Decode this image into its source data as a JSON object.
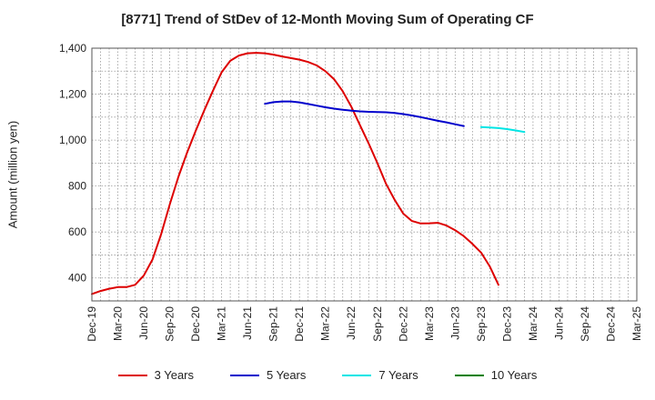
{
  "chart_data": {
    "type": "line",
    "title": "[8771]  Trend of StDev of 12-Month Moving Sum of Operating CF",
    "ylabel": "Amount (million yen)",
    "xlabel": "",
    "ylim": [
      300,
      1400
    ],
    "yticks": [
      400,
      600,
      800,
      1000,
      1200,
      1400
    ],
    "ytick_labels": [
      "400",
      "600",
      "800",
      "1,000",
      "1,200",
      "1,400"
    ],
    "x_start": "Dec-19",
    "x_end": "Mar-25",
    "xtick_labels": [
      "Dec-19",
      "Mar-20",
      "Jun-20",
      "Sep-20",
      "Dec-20",
      "Mar-21",
      "Jun-21",
      "Sep-21",
      "Dec-21",
      "Mar-22",
      "Jun-22",
      "Sep-22",
      "Dec-22",
      "Mar-23",
      "Jun-23",
      "Sep-23",
      "Dec-23",
      "Mar-24",
      "Jun-24",
      "Sep-24",
      "Dec-24",
      "Mar-25"
    ],
    "grid": true,
    "legend_position": "bottom",
    "series": [
      {
        "name": "3 Years",
        "color": "#dd0000",
        "points": [
          [
            "Dec-19",
            330
          ],
          [
            "Jan-20",
            343
          ],
          [
            "Feb-20",
            353
          ],
          [
            "Mar-20",
            360
          ],
          [
            "Apr-20",
            360
          ],
          [
            "May-20",
            370
          ],
          [
            "Jun-20",
            410
          ],
          [
            "Jul-20",
            480
          ],
          [
            "Aug-20",
            590
          ],
          [
            "Sep-20",
            720
          ],
          [
            "Oct-20",
            840
          ],
          [
            "Nov-20",
            945
          ],
          [
            "Dec-20",
            1040
          ],
          [
            "Jan-21",
            1130
          ],
          [
            "Feb-21",
            1215
          ],
          [
            "Mar-21",
            1295
          ],
          [
            "Apr-21",
            1345
          ],
          [
            "May-21",
            1368
          ],
          [
            "Jun-21",
            1378
          ],
          [
            "Jul-21",
            1380
          ],
          [
            "Aug-21",
            1378
          ],
          [
            "Sep-21",
            1372
          ],
          [
            "Oct-21",
            1364
          ],
          [
            "Nov-21",
            1357
          ],
          [
            "Dec-21",
            1350
          ],
          [
            "Jan-22",
            1340
          ],
          [
            "Feb-22",
            1325
          ],
          [
            "Mar-22",
            1300
          ],
          [
            "Apr-22",
            1265
          ],
          [
            "May-22",
            1213
          ],
          [
            "Jun-22",
            1145
          ],
          [
            "Jul-22",
            1065
          ],
          [
            "Aug-22",
            985
          ],
          [
            "Sep-22",
            900
          ],
          [
            "Oct-22",
            810
          ],
          [
            "Nov-22",
            740
          ],
          [
            "Dec-22",
            680
          ],
          [
            "Jan-23",
            648
          ],
          [
            "Feb-23",
            637
          ],
          [
            "Mar-23",
            638
          ],
          [
            "Apr-23",
            640
          ],
          [
            "May-23",
            628
          ],
          [
            "Jun-23",
            608
          ],
          [
            "Jul-23",
            582
          ],
          [
            "Aug-23",
            548
          ],
          [
            "Sep-23",
            510
          ],
          [
            "Oct-23",
            450
          ],
          [
            "Nov-23",
            370
          ]
        ]
      },
      {
        "name": "5 Years",
        "color": "#0000cc",
        "points": [
          [
            "Aug-21",
            1158
          ],
          [
            "Sep-21",
            1165
          ],
          [
            "Oct-21",
            1168
          ],
          [
            "Nov-21",
            1168
          ],
          [
            "Dec-21",
            1164
          ],
          [
            "Jan-22",
            1157
          ],
          [
            "Feb-22",
            1150
          ],
          [
            "Mar-22",
            1143
          ],
          [
            "Apr-22",
            1137
          ],
          [
            "May-22",
            1132
          ],
          [
            "Jun-22",
            1128
          ],
          [
            "Jul-22",
            1125
          ],
          [
            "Aug-22",
            1123
          ],
          [
            "Sep-22",
            1122
          ],
          [
            "Oct-22",
            1121
          ],
          [
            "Nov-22",
            1118
          ],
          [
            "Dec-22",
            1113
          ],
          [
            "Jan-23",
            1107
          ],
          [
            "Feb-23",
            1100
          ],
          [
            "Mar-23",
            1092
          ],
          [
            "Apr-23",
            1084
          ],
          [
            "May-23",
            1077
          ],
          [
            "Jun-23",
            1069
          ],
          [
            "Jul-23",
            1061
          ]
        ]
      },
      {
        "name": "7 Years",
        "color": "#00e5e5",
        "points": [
          [
            "Sep-23",
            1057
          ],
          [
            "Oct-23",
            1055
          ],
          [
            "Nov-23",
            1052
          ],
          [
            "Dec-23",
            1048
          ],
          [
            "Jan-24",
            1042
          ],
          [
            "Feb-24",
            1035
          ]
        ]
      },
      {
        "name": "10 Years",
        "color": "#008000",
        "points": []
      }
    ]
  }
}
